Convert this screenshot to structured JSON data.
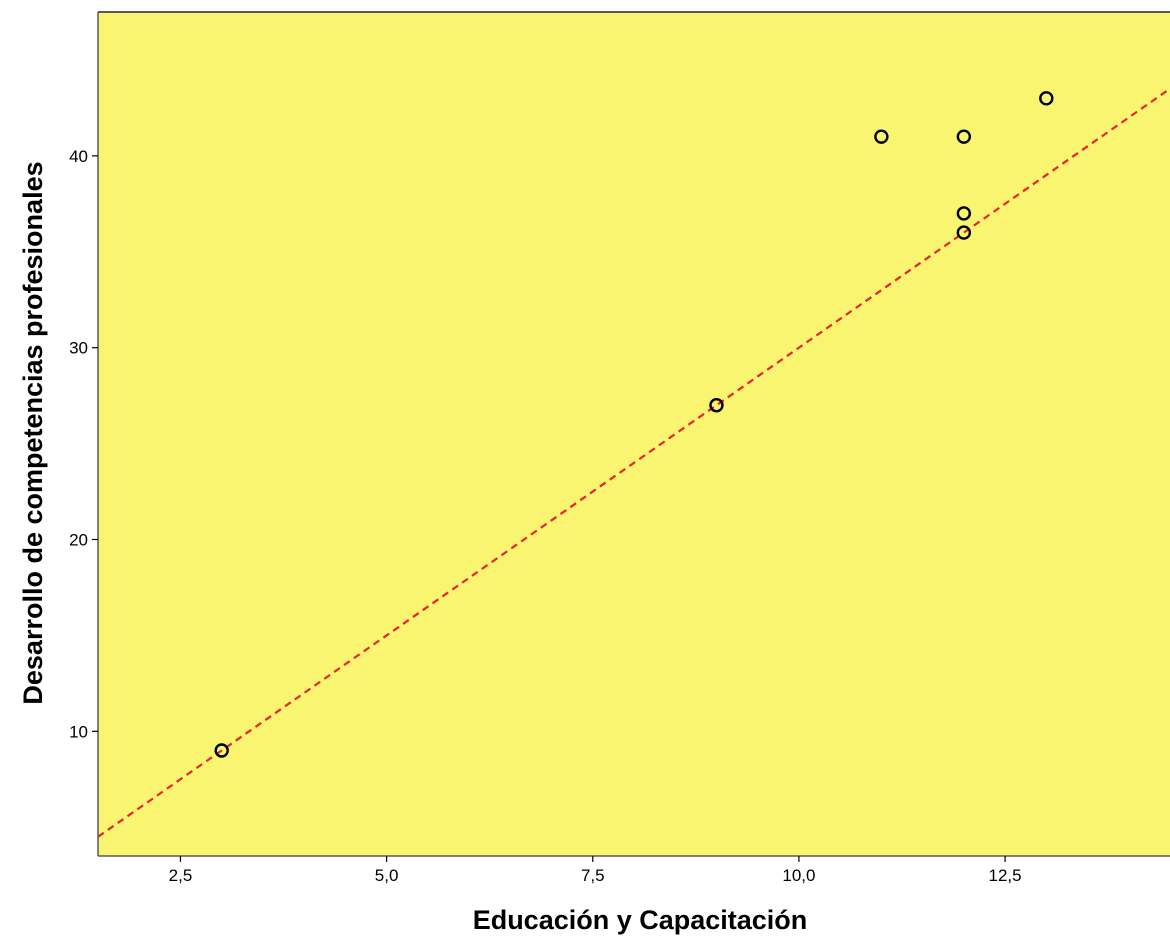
{
  "chart_data": {
    "type": "scatter",
    "xlabel": "Educación y Capacitación",
    "ylabel": "Desarrollo de competencias profesionales",
    "xlim": [
      1.5,
      14.5
    ],
    "ylim": [
      3.5,
      47.5
    ],
    "x_ticks": [
      {
        "value": 2.5,
        "label": "2,5"
      },
      {
        "value": 5.0,
        "label": "5,0"
      },
      {
        "value": 7.5,
        "label": "7,5"
      },
      {
        "value": 10.0,
        "label": "10,0"
      },
      {
        "value": 12.5,
        "label": "12,5"
      }
    ],
    "y_ticks": [
      {
        "value": 10,
        "label": "10"
      },
      {
        "value": 20,
        "label": "20"
      },
      {
        "value": 30,
        "label": "30"
      },
      {
        "value": 40,
        "label": "40"
      }
    ],
    "points": [
      {
        "x": 3,
        "y": 9
      },
      {
        "x": 9,
        "y": 27
      },
      {
        "x": 11,
        "y": 41
      },
      {
        "x": 12,
        "y": 41
      },
      {
        "x": 12,
        "y": 37
      },
      {
        "x": 12,
        "y": 36
      },
      {
        "x": 13,
        "y": 43
      }
    ],
    "reference_line": {
      "style": "dashed",
      "slope": 3,
      "intercept": 0
    },
    "grid": false,
    "legend": "none",
    "colors": {
      "plot_background": "#f9f571",
      "reference_line": "#e8232a",
      "marker_stroke": "#000000",
      "frame": "#595959"
    }
  }
}
